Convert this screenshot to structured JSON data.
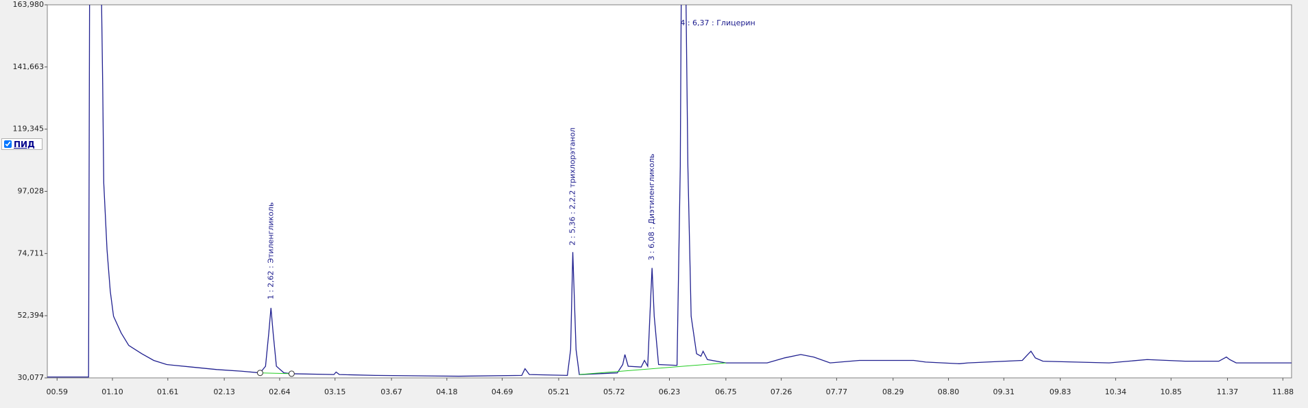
{
  "chart_data": {
    "type": "line",
    "x": [
      0.5,
      0.88,
      0.89,
      0.99,
      1.0,
      1.01,
      1.02,
      1.05,
      1.08,
      1.11,
      1.18,
      1.25,
      1.37,
      1.48,
      1.6,
      1.83,
      2.06,
      2.29,
      2.46,
      2.51,
      2.54,
      2.56,
      2.58,
      2.61,
      2.68,
      2.75,
      3.14,
      3.16,
      3.19,
      3.52,
      4.29,
      4.87,
      4.9,
      4.94,
      5.29,
      5.32,
      5.34,
      5.37,
      5.4,
      5.75,
      5.8,
      5.82,
      5.85,
      5.97,
      6.0,
      6.03,
      6.05,
      6.07,
      6.09,
      6.13,
      6.3,
      6.33,
      6.34,
      6.38,
      6.4,
      6.43,
      6.48,
      6.52,
      6.54,
      6.58,
      6.75,
      7.13,
      7.29,
      7.44,
      7.56,
      7.71,
      7.98,
      8.48,
      8.59,
      8.9,
      8.98,
      9.48,
      9.53,
      9.56,
      9.6,
      9.67,
      10.28,
      10.63,
      10.98,
      11.29,
      11.36,
      11.39,
      11.45,
      11.96
    ],
    "series": [
      {
        "name": "ПИД",
        "color": "#1f1f8f",
        "values": [
          30380,
          30380,
          175000,
          175000,
          163980,
          135900,
          100000,
          76100,
          61160,
          52200,
          46220,
          41730,
          38750,
          36350,
          34860,
          33960,
          33070,
          32470,
          31870,
          34260,
          46220,
          55190,
          46220,
          34260,
          31870,
          31570,
          31270,
          32170,
          31270,
          30970,
          30680,
          30970,
          33360,
          31270,
          30970,
          40240,
          75210,
          40240,
          31270,
          31870,
          34860,
          38450,
          34260,
          33960,
          36350,
          34260,
          52200,
          69530,
          52200,
          34860,
          34560,
          106000,
          175000,
          175000,
          106000,
          52200,
          38750,
          37850,
          39640,
          36650,
          35460,
          35460,
          37250,
          38450,
          37550,
          35460,
          36350,
          36350,
          35760,
          35160,
          35460,
          36350,
          38450,
          39640,
          37250,
          36060,
          35460,
          36650,
          36060,
          36060,
          37550,
          36650,
          35460,
          35460
        ]
      }
    ],
    "baselines": {
      "color": "#22cc22",
      "segments": [
        {
          "x": [
            2.46,
            2.75
          ],
          "values": [
            31870,
            31570
          ]
        },
        {
          "x": [
            5.4,
            6.75
          ],
          "values": [
            31270,
            35460
          ]
        }
      ]
    },
    "annotations": [
      {
        "text": "1 : 2,62 : Этиленгликоль",
        "x": 2.56,
        "y": 58200,
        "vertical": true
      },
      {
        "text": "2 : 5,36 : 2,2,2 трихлорэтанол",
        "x": 5.34,
        "y": 77600,
        "vertical": true
      },
      {
        "text": "3 : 6,08 : Диэтиленгликоль",
        "x": 6.07,
        "y": 72200,
        "vertical": true
      },
      {
        "text": "4 : 6,37 : Глицерин",
        "x": 6.33,
        "y": 157400,
        "vertical": false
      }
    ],
    "xlim": [
      0.5,
      11.96
    ],
    "ylim": [
      30077,
      163980
    ],
    "xticks": [
      {
        "value": 0.59,
        "label": "00.59"
      },
      {
        "value": 1.1,
        "label": "01.10"
      },
      {
        "value": 1.61,
        "label": "01.61"
      },
      {
        "value": 2.13,
        "label": "02.13"
      },
      {
        "value": 2.64,
        "label": "02.64"
      },
      {
        "value": 3.15,
        "label": "03.15"
      },
      {
        "value": 3.67,
        "label": "03.67"
      },
      {
        "value": 4.18,
        "label": "04.18"
      },
      {
        "value": 4.69,
        "label": "04.69"
      },
      {
        "value": 5.21,
        "label": "05.21"
      },
      {
        "value": 5.72,
        "label": "05.72"
      },
      {
        "value": 6.23,
        "label": "06.23"
      },
      {
        "value": 6.75,
        "label": "06.75"
      },
      {
        "value": 7.26,
        "label": "07.26"
      },
      {
        "value": 7.77,
        "label": "07.77"
      },
      {
        "value": 8.29,
        "label": "08.29"
      },
      {
        "value": 8.8,
        "label": "08.80"
      },
      {
        "value": 9.31,
        "label": "09.31"
      },
      {
        "value": 9.83,
        "label": "09.83"
      },
      {
        "value": 10.34,
        "label": "10.34"
      },
      {
        "value": 10.85,
        "label": "10.85"
      },
      {
        "value": 11.37,
        "label": "11.37"
      },
      {
        "value": 11.88,
        "label": "11.88"
      }
    ],
    "yticks": [
      {
        "value": 30077,
        "label": "30,077"
      },
      {
        "value": 52394,
        "label": "52,394"
      },
      {
        "value": 74711,
        "label": "74,711"
      },
      {
        "value": 97028,
        "label": "97,028"
      },
      {
        "value": 119345,
        "label": "119,345"
      },
      {
        "value": 141663,
        "label": "141,663"
      },
      {
        "value": 163980,
        "label": "163,980"
      }
    ],
    "legend_checked": true
  }
}
